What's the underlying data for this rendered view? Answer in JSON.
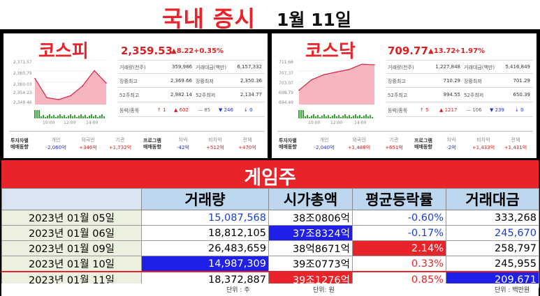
{
  "header": {
    "title": "국내 증시",
    "date": "1월 11일"
  },
  "kospi": {
    "name": "코스피",
    "price": "2,359.53",
    "change": "▲8.22",
    "change_pct": "+0.35%",
    "y_ticks": [
      "2,371.57",
      "2,365.79",
      "2,360.03",
      "2,354.23",
      "2,348.46"
    ],
    "x_ticks": [
      "10:00",
      "12:00",
      "14:00"
    ],
    "stats": {
      "vol_label": "거래량(천주)",
      "vol": "359,986",
      "amt_label": "거래대금(백만)",
      "amt": "6,157,332",
      "high_label": "장중최고",
      "high": "2,369.66",
      "low_label": "장중최저",
      "low": "2,350.36",
      "w52h_label": "52주최고",
      "w52h": "2,982.14",
      "w52l_label": "52주최저",
      "w52l": "2,134.77",
      "adv_label": "등락/종목",
      "adv1": "↑ 1",
      "adv2": "▲ 602",
      "adv3": "— 85",
      "adv4": "▼ 246",
      "adv5": "↓ 0"
    },
    "flow": {
      "title1": "투자자별",
      "title2": "매매동향",
      "h1": "개인",
      "v1": "-2,060억",
      "h2": "외국인",
      "v2": "+346억",
      "h3": "기관",
      "v3": "+1,732억",
      "ptitle1": "프로그램",
      "ptitle2": "매매동향",
      "h4": "차익",
      "v4": "-42억",
      "h5": "비차익",
      "v5": "+512억",
      "h6": "전체",
      "v6": "+470억"
    }
  },
  "kosdaq": {
    "name": "코스닥",
    "price": "709.77",
    "change": "▲13.72",
    "change_pct": "+1.97%",
    "y_ticks": [
      "711.66",
      "707.37",
      "703.07",
      "698.79",
      "694.49"
    ],
    "x_ticks": [
      "10:00",
      "12:00",
      "14:00"
    ],
    "stats": {
      "vol_label": "거래량(천주)",
      "vol": "1,227,848",
      "amt_label": "거래대금(백만)",
      "amt": "5,416,849",
      "high_label": "장중최고",
      "high": "710.29",
      "low_label": "장중최저",
      "low": "701.29",
      "w52h_label": "52주최고",
      "w52h": "994.55",
      "w52l_label": "52주최저",
      "w52l": "650.39",
      "adv_label": "등락/종목",
      "adv1": "↑ 5",
      "adv2": "▲ 1217",
      "adv3": "— 106",
      "adv4": "▼ 239",
      "adv5": "↓ 0"
    },
    "flow": {
      "title1": "투자자별",
      "title2": "매매동향",
      "h1": "개인",
      "v1": "-2,040억",
      "h2": "외국인",
      "v2": "+1,488억",
      "h3": "기관",
      "v3": "+651억",
      "ptitle1": "프로그램",
      "ptitle2": "매매동향",
      "h4": "차익",
      "v4": "-2억",
      "h5": "비차익",
      "v5": "+1,433억",
      "h6": "전체",
      "v6": "+1,431억"
    }
  },
  "game": {
    "title": "게임주",
    "columns": [
      "",
      "거래량",
      "시가총액",
      "평균등락률",
      "거래대금"
    ],
    "rows": [
      [
        "2023년 01월 05일",
        "15,087,568",
        "38조0806억",
        "-0.60%",
        "333,268"
      ],
      [
        "2023년 01월 06일",
        "18,812,105",
        "37조8324억",
        "-0.17%",
        "245,670"
      ],
      [
        "2023년 01월 09일",
        "26,483,659",
        "38억8671억",
        "2.14%",
        "258,797"
      ],
      [
        "2023년 01월 10일",
        "14,987,309",
        "39조0773억",
        "0.33%",
        "245,955"
      ],
      [
        "2023년 01월 11일",
        "18,372,887",
        "39조1276억",
        "0.85%",
        "209,671"
      ]
    ],
    "units": {
      "u1": "단위 : 주",
      "u2": "단위: 원",
      "u3": "단위 : 백만원"
    }
  },
  "colors": {
    "accent_red": "#e8242a",
    "header_blue": "#bdd7ee",
    "date_green": "#ebf1de",
    "fill_blue": "#1f1fe8"
  },
  "chart_data": [
    {
      "type": "area",
      "title": "코스피",
      "x": [
        "09:00",
        "10:00",
        "11:00",
        "12:00",
        "13:00",
        "14:00",
        "15:30"
      ],
      "values": [
        2362,
        2352,
        2351,
        2353,
        2358,
        2366,
        2359.53
      ],
      "ylim": [
        2348.46,
        2371.57
      ]
    },
    {
      "type": "area",
      "title": "코스닥",
      "x": [
        "09:00",
        "10:00",
        "11:00",
        "12:00",
        "13:00",
        "14:00",
        "15:30"
      ],
      "values": [
        700,
        704,
        706,
        707,
        708,
        710,
        709.77
      ],
      "ylim": [
        694.49,
        711.66
      ]
    }
  ]
}
